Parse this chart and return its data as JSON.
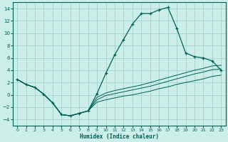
{
  "xlabel": "Humidex (Indice chaleur)",
  "xlim": [
    -0.5,
    23.5
  ],
  "ylim": [
    -5,
    15
  ],
  "xticks": [
    0,
    1,
    2,
    3,
    4,
    5,
    6,
    7,
    8,
    9,
    10,
    11,
    12,
    13,
    14,
    15,
    16,
    17,
    18,
    19,
    20,
    21,
    22,
    23
  ],
  "yticks": [
    -4,
    -2,
    0,
    2,
    4,
    6,
    8,
    10,
    12,
    14
  ],
  "bg_color": "#cceee8",
  "grid_color": "#99cccc",
  "line_color": "#005f55",
  "series_main": [
    2.5,
    1.7,
    1.2,
    0.1,
    -1.3,
    -3.2,
    -3.4,
    -3.0,
    -2.6,
    0.2,
    3.5,
    6.5,
    9.0,
    11.5,
    13.2,
    13.2,
    13.8,
    14.2,
    10.8,
    6.8,
    6.2,
    6.0,
    5.5,
    4.0
  ],
  "series_low": [
    2.5,
    1.7,
    1.2,
    0.1,
    -1.3,
    -3.2,
    -3.4,
    -3.0,
    -2.6,
    -1.2,
    -0.8,
    -0.5,
    -0.2,
    0.0,
    0.3,
    0.6,
    1.0,
    1.3,
    1.7,
    2.0,
    2.3,
    2.6,
    3.0,
    3.2
  ],
  "series_mid1": [
    2.5,
    1.7,
    1.2,
    0.1,
    -1.3,
    -3.2,
    -3.4,
    -3.0,
    -2.6,
    -0.8,
    -0.1,
    0.2,
    0.5,
    0.8,
    1.1,
    1.4,
    1.8,
    2.2,
    2.6,
    3.0,
    3.4,
    3.7,
    4.1,
    4.2
  ],
  "series_mid2": [
    2.5,
    1.7,
    1.2,
    0.1,
    -1.3,
    -3.2,
    -3.4,
    -3.0,
    -2.6,
    -0.4,
    0.3,
    0.7,
    1.0,
    1.3,
    1.6,
    2.0,
    2.4,
    2.8,
    3.2,
    3.6,
    4.0,
    4.3,
    4.7,
    4.8
  ]
}
